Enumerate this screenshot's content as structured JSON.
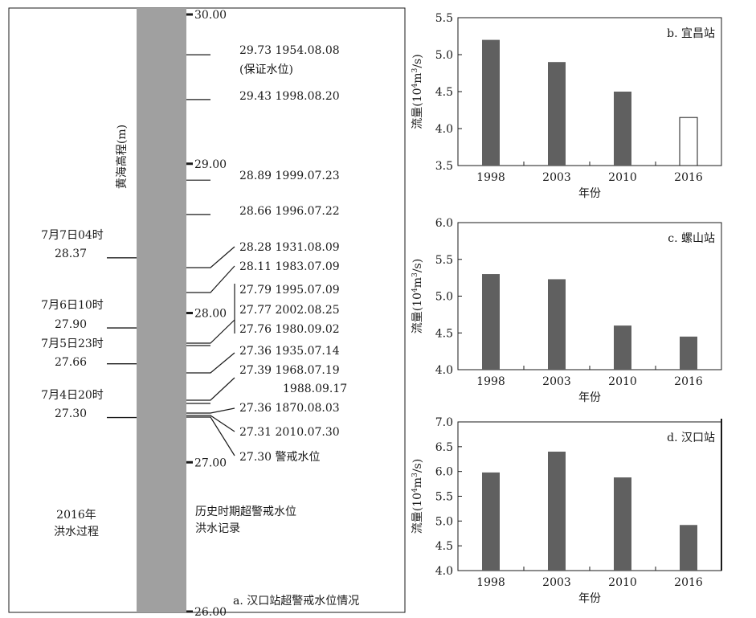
{
  "panel_a": {
    "caption": "a. 汉口站超警戒水位情况",
    "ylabel": "黄海高程(m)",
    "ticks": [
      {
        "value": 30.0,
        "label": "30.00"
      },
      {
        "value": 29.0,
        "label": "29.00"
      },
      {
        "value": 28.0,
        "label": "28.00"
      },
      {
        "value": 27.0,
        "label": "27.00"
      },
      {
        "value": 26.0,
        "label": "26.00"
      }
    ],
    "left_group_label": [
      "2016年",
      "洪水过程"
    ],
    "right_group_label": [
      "历史时期超警戒水位",
      "洪水记录"
    ],
    "events_2016": [
      {
        "date": "7月7日04时",
        "level": "28.37",
        "value": 28.37
      },
      {
        "date": "7月6日10时",
        "level": "27.90",
        "value": 27.9
      },
      {
        "date": "7月5日23时",
        "level": "27.66",
        "value": 27.66
      },
      {
        "date": "7月4日20时",
        "level": "27.30",
        "value": 27.3
      }
    ],
    "history": [
      {
        "level": "29.73",
        "date": "1954.08.08",
        "value": 29.73,
        "note": "(保证水位)"
      },
      {
        "level": "29.43",
        "date": "1998.08.20",
        "value": 29.43
      },
      {
        "level": "28.89",
        "date": "1999.07.23",
        "value": 28.89
      },
      {
        "level": "28.66",
        "date": "1996.07.22",
        "value": 28.66
      },
      {
        "level": "28.28",
        "date": "1931.08.09",
        "value": 28.28
      },
      {
        "level": "28.11",
        "date": "1983.07.09",
        "value": 28.11
      },
      {
        "level": "27.79",
        "date": "1995.07.09",
        "value": 27.79
      },
      {
        "level": "27.77",
        "date": "2002.08.25",
        "value": 27.77
      },
      {
        "level": "27.76",
        "date": "1980.09.02",
        "value": 27.76
      },
      {
        "level": "27.36",
        "date": "1935.07.14",
        "value": 27.36
      },
      {
        "level": "27.39",
        "date": "1968.07.19",
        "value": 27.39
      },
      {
        "level": "",
        "date": "1988.09.17",
        "value": 27.39
      },
      {
        "level": "27.36",
        "date": "1870.08.03",
        "value": 27.36
      },
      {
        "level": "27.31",
        "date": "2010.07.30",
        "value": 27.31
      },
      {
        "level": "27.30",
        "date": "警戒水位",
        "value": 27.3
      }
    ]
  },
  "chart_data": [
    {
      "type": "bar",
      "title": "b. 宜昌站",
      "categories": [
        "1998",
        "2003",
        "2010",
        "2016"
      ],
      "values": [
        5.2,
        4.9,
        4.5,
        4.15
      ],
      "hollow_last": true,
      "ylim": [
        3.5,
        5.5
      ],
      "yticks": [
        3.5,
        4.0,
        4.5,
        5.0,
        5.5
      ],
      "ytick_labels": [
        "3.5",
        "4.0",
        "4.5",
        "5.0",
        "5.5"
      ],
      "ylabel_prefix": "流量(10",
      "ylabel_sup1": "4",
      "ylabel_mid": "m",
      "ylabel_sup2": "3",
      "ylabel_suffix": "/s)",
      "xlabel": "年份"
    },
    {
      "type": "bar",
      "title": "c. 螺山站",
      "categories": [
        "1998",
        "2003",
        "2010",
        "2016"
      ],
      "values": [
        5.3,
        5.23,
        4.6,
        4.45
      ],
      "hollow_last": false,
      "ylim": [
        4.0,
        6.0
      ],
      "yticks": [
        4.0,
        4.5,
        5.0,
        5.5,
        6.0
      ],
      "ytick_labels": [
        "4.0",
        "4.5",
        "5.0",
        "5.5",
        "6.0"
      ],
      "ylabel_prefix": "流量(10",
      "ylabel_sup1": "4",
      "ylabel_mid": "m",
      "ylabel_sup2": "3",
      "ylabel_suffix": "/s)",
      "xlabel": "年份"
    },
    {
      "type": "bar",
      "title": "d. 汉口站",
      "categories": [
        "1998",
        "2003",
        "2010",
        "2016"
      ],
      "values": [
        5.98,
        6.4,
        5.88,
        4.92
      ],
      "hollow_last": false,
      "ylim": [
        4.0,
        7.0
      ],
      "yticks": [
        4.0,
        4.5,
        5.0,
        5.5,
        6.0,
        6.5,
        7.0
      ],
      "ytick_labels": [
        "4.0",
        "4.5",
        "5.0",
        "5.5",
        "6.0",
        "6.5",
        "7.0"
      ],
      "ylabel_prefix": "流量(10",
      "ylabel_sup1": "4",
      "ylabel_mid": "m",
      "ylabel_sup2": "3",
      "ylabel_suffix": "/s)",
      "xlabel": "年份"
    }
  ],
  "colors": {
    "bar": "#606060",
    "column": "#a0a0a0",
    "line": "#1a1a1a"
  }
}
